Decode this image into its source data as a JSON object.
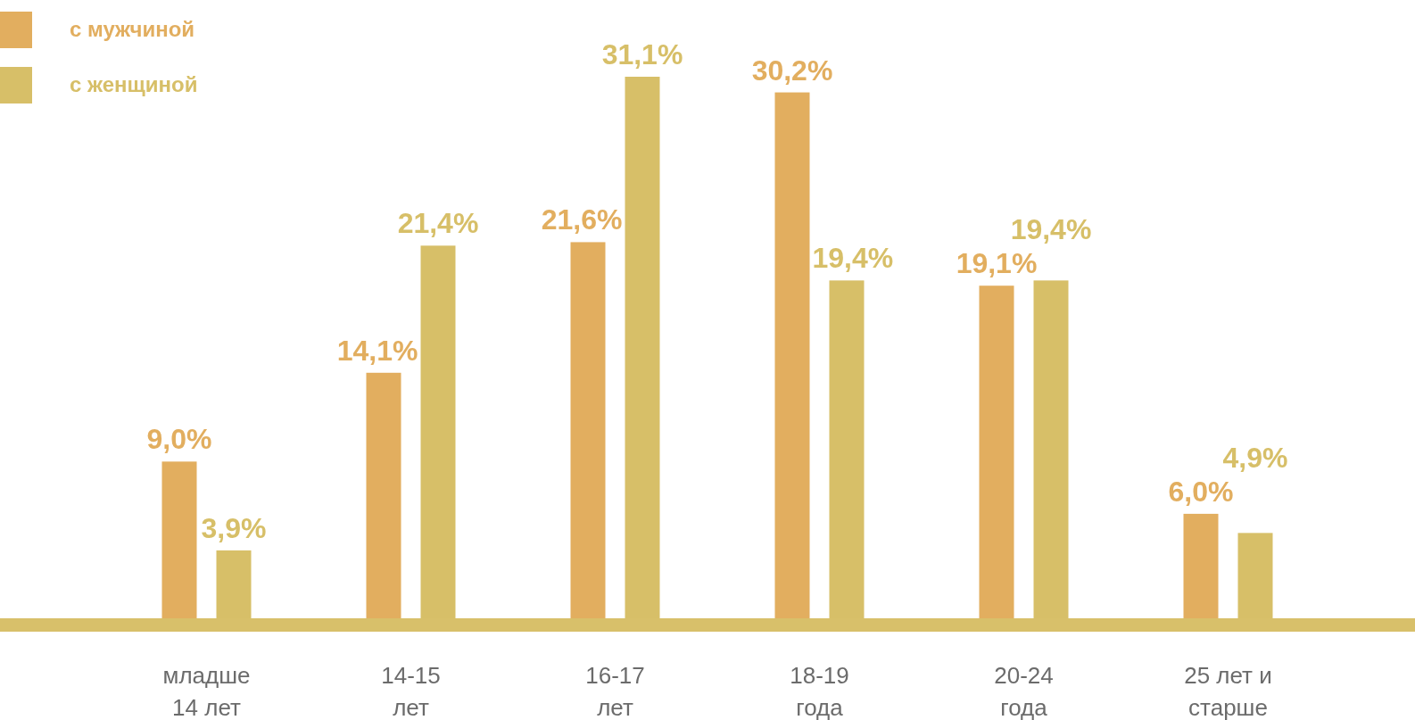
{
  "chart_data": {
    "type": "bar",
    "categories": [
      "младше\n14 лет",
      "14-15\nлет",
      "16-17\nлет",
      "18-19\nгода",
      "20-24\nгода",
      "25 лет и\nстарше"
    ],
    "series": [
      {
        "name": "с мужчиной",
        "color": "#e2ae5f",
        "values": [
          9.0,
          14.1,
          21.6,
          30.2,
          19.1,
          6.0
        ],
        "value_labels": [
          "9,0%",
          "14,1%",
          "21,6%",
          "30,2%",
          "19,1%",
          "6,0%"
        ]
      },
      {
        "name": "с женщиной",
        "color": "#d7bf68",
        "values": [
          3.9,
          21.4,
          31.1,
          19.4,
          19.4,
          4.9
        ],
        "value_labels": [
          "3,9%",
          "21,4%",
          "31,1%",
          "19,4%",
          "19,4%",
          "4,9%"
        ]
      }
    ],
    "legend": "top left"
  }
}
